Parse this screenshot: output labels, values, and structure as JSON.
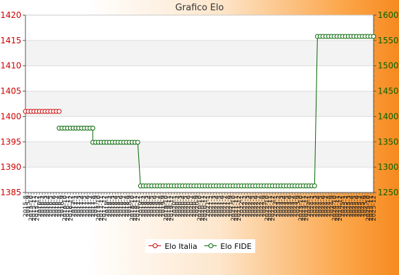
{
  "chart_data": {
    "type": "line",
    "title": "Grafico Elo",
    "xlabel": "",
    "ylabel_left": "",
    "ylabel_right": "",
    "left_axis": {
      "min": 1385,
      "max": 1420,
      "ticks": [
        1385,
        1390,
        1395,
        1400,
        1405,
        1410,
        1415,
        1420
      ],
      "color": "#cc0000"
    },
    "right_axis": {
      "min": 1250,
      "max": 1600,
      "ticks": [
        1250,
        1300,
        1350,
        1400,
        1450,
        1500,
        1550,
        1600
      ],
      "color": "#006400"
    },
    "x_tick_labels": [
      "2015-8",
      "2015-9",
      "2015-10",
      "2015-11",
      "2015-12",
      "2016-1",
      "2016-2",
      "2016-3",
      "2016-4",
      "2016-5",
      "2016-6",
      "2016-7",
      "2016-8",
      "2016-9",
      "2016-10",
      "2016-11",
      "2016-12",
      "2017-1",
      "2017-2",
      "2017-3",
      "2017-4",
      "2017-5",
      "2017-6",
      "2017-7",
      "2017-8",
      "2017-9",
      "2017-10",
      "2017-11",
      "2017-12",
      "2018-1",
      "2018-2",
      "2018-3",
      "2018-4",
      "2018-5",
      "2018-6",
      "2018-7",
      "2018-8",
      "2018-9",
      "2018-10",
      "2018-11",
      "2018-12",
      "2019-1",
      "2019-2",
      "2019-3",
      "2019-4",
      "2019-5",
      "2019-6",
      "2019-7",
      "2019-8",
      "2019-9",
      "2019-10",
      "2019-11",
      "2019-12",
      "2020-1",
      "2020-2",
      "2020-3",
      "2020-4",
      "2020-5",
      "2020-6",
      "2020-7",
      "2020-8",
      "2020-9",
      "2020-10",
      "2020-11",
      "2020-12",
      "2021-1",
      "2021-2",
      "2021-3",
      "2021-4",
      "2021-5",
      "2021-6",
      "2021-7",
      "2021-8",
      "2021-9",
      "2021-10",
      "2021-11",
      "2021-12",
      "2022-1",
      "2022-2",
      "2022-3",
      "2022-4",
      "2022-5",
      "2022-6",
      "2022-7",
      "2022-8",
      "2022-9",
      "2022-10",
      "2022-11",
      "2022-12",
      "2023-1",
      "2023-2",
      "2023-3",
      "2023-4",
      "2023-5",
      "2023-6",
      "2023-7",
      "2023-8",
      "2023-9",
      "2023-10",
      "2023-11",
      "2023-12",
      "2024-1",
      "2024-2",
      "2024-3",
      "2024-4",
      "2024-5",
      "2024-6",
      "2024-7",
      "2024-8",
      "2024-9",
      "2024-10",
      "2024-11",
      "2024-12",
      "2025-1",
      "2025-2",
      "2025-3",
      "2025-4",
      "2025-5",
      "2025-6",
      "2025-7",
      "2025-8",
      "2025-9",
      "2025-10",
      "2025-11",
      "2025-12"
    ],
    "series": [
      {
        "name": "Elo Italia",
        "axis": "left",
        "color": "#cc0000",
        "segments": [
          {
            "from": 0,
            "to": 12,
            "value": 1401
          }
        ]
      },
      {
        "name": "Elo FIDE",
        "axis": "right",
        "color": "#006400",
        "segments": [
          {
            "from": 12,
            "to": 24,
            "value": 1377
          },
          {
            "from": 24,
            "to": 40,
            "value": 1349
          },
          {
            "from": 41,
            "to": 103,
            "value": 1263
          },
          {
            "from": 104,
            "to": 124,
            "value": 1558
          }
        ]
      }
    ],
    "grid": true,
    "legend": "bottom-center"
  }
}
